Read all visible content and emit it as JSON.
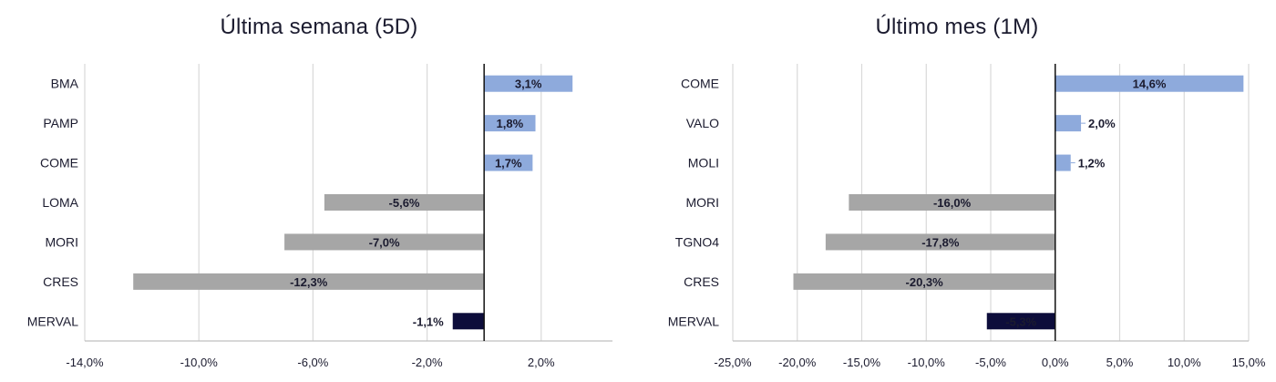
{
  "charts": [
    {
      "title": "Última semana (5D)",
      "chart_data": {
        "type": "bar",
        "orientation": "horizontal",
        "title": "Última semana (5D)",
        "categories": [
          "BMA",
          "PAMP",
          "COME",
          "LOMA",
          "MORI",
          "CRES",
          "MERVAL"
        ],
        "values": [
          3.1,
          1.8,
          1.7,
          -5.6,
          -7.0,
          -12.3,
          -1.1
        ],
        "value_labels": [
          "3,1%",
          "1,8%",
          "1,7%",
          "-5,6%",
          "-7,0%",
          "-12,3%",
          "-1,1%"
        ],
        "xlim": [
          -14,
          4.5
        ],
        "xticks": [
          -14,
          -10,
          -6,
          -2,
          2
        ],
        "xtick_labels": [
          "-14,0%",
          "-10,0%",
          "-6,0%",
          "-2,0%",
          "2,0%"
        ],
        "grid": true,
        "colors": {
          "positive": "#8eaadc",
          "negative": "#a6a6a6",
          "index": "#0d0d3b"
        }
      }
    },
    {
      "title": "Último mes (1M)",
      "chart_data": {
        "type": "bar",
        "orientation": "horizontal",
        "title": "Último mes (1M)",
        "categories": [
          "COME",
          "VALO",
          "MOLI",
          "MORI",
          "TGNO4",
          "CRES",
          "MERVAL"
        ],
        "values": [
          14.6,
          2.0,
          1.2,
          -16.0,
          -17.8,
          -20.3,
          -5.3
        ],
        "value_labels": [
          "14,6%",
          "2,0%",
          "1,2%",
          "-16,0%",
          "-17,8%",
          "-20,3%",
          "-5,3%"
        ],
        "xlim": [
          -25,
          15
        ],
        "xticks": [
          -25,
          -20,
          -15,
          -10,
          -5,
          0,
          5,
          10,
          15
        ],
        "xtick_labels": [
          "-25,0%",
          "-20,0%",
          "-15,0%",
          "-10,0%",
          "-5,0%",
          "0,0%",
          "5,0%",
          "10,0%",
          "15,0%"
        ],
        "grid": true,
        "colors": {
          "positive": "#8eaadc",
          "negative": "#a6a6a6",
          "index": "#0d0d3b"
        }
      }
    }
  ]
}
